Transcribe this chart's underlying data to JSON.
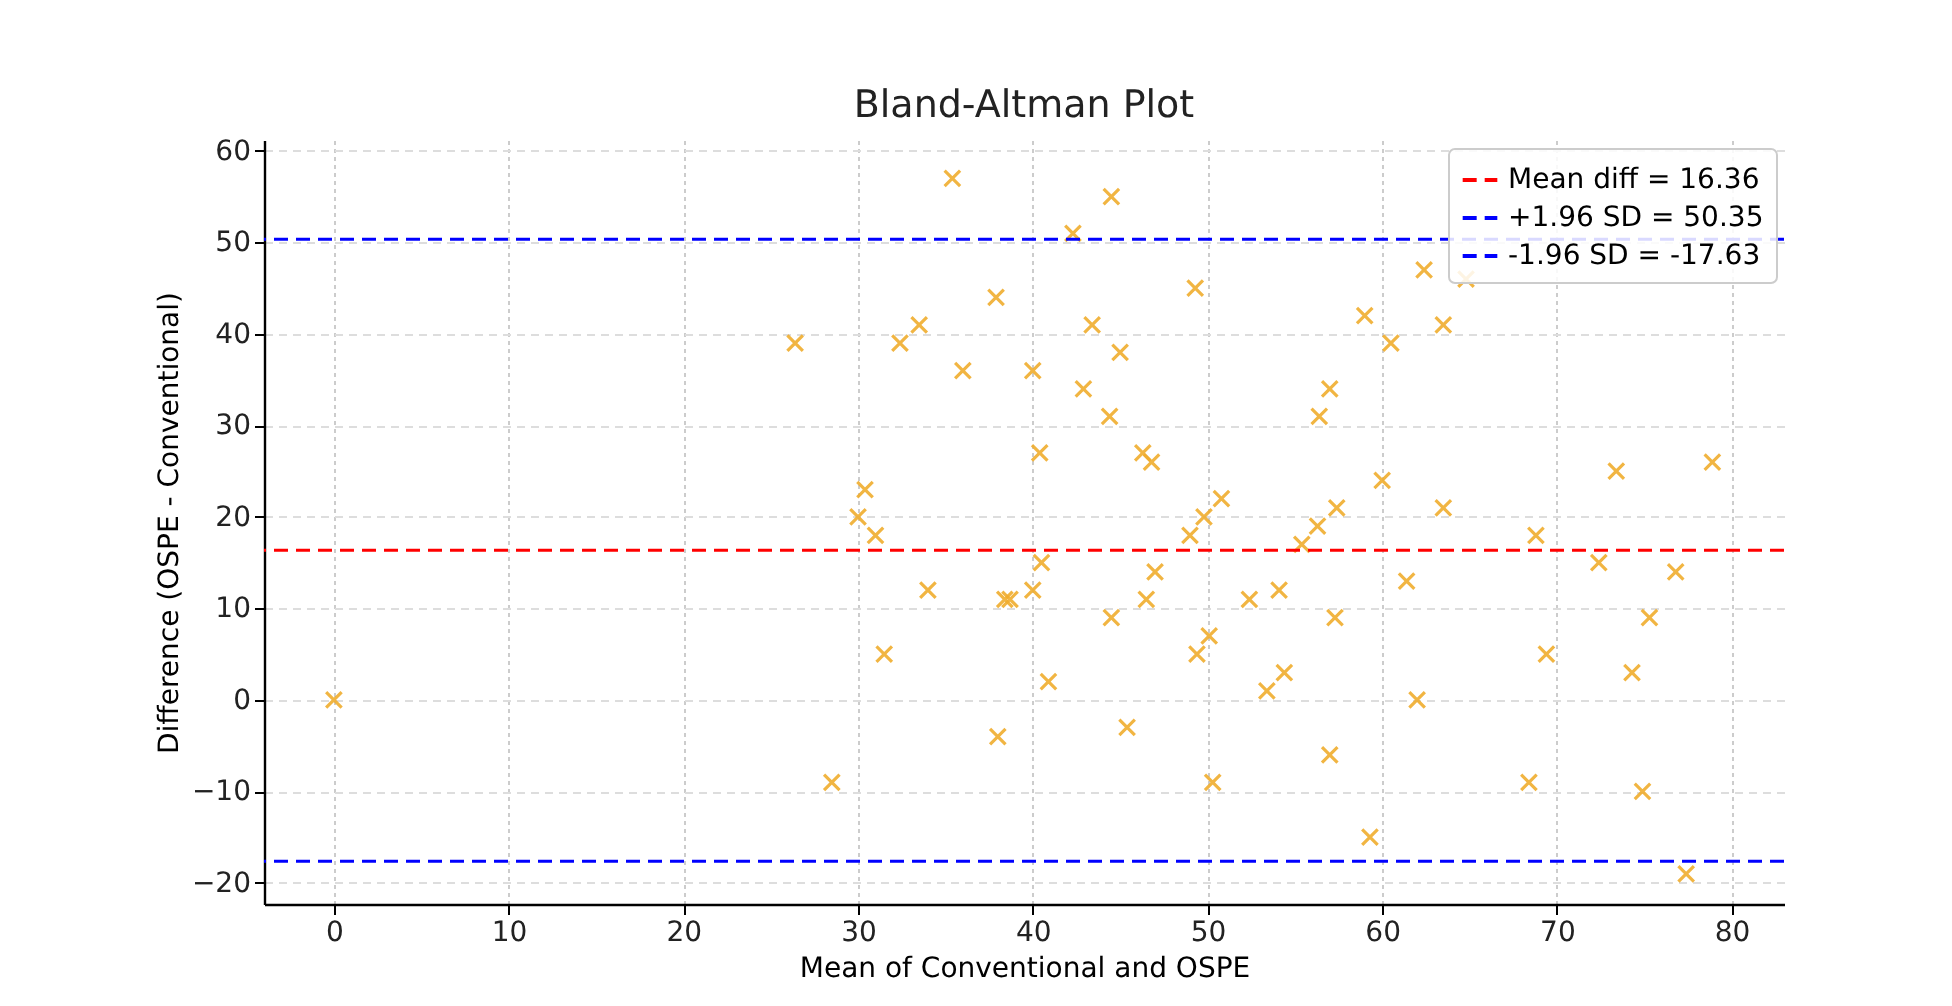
{
  "chart_data": {
    "type": "scatter",
    "title": "Bland-Altman Plot",
    "xlabel": "Mean of Conventional and OSPE",
    "ylabel": "Difference (OSPE - Conventional)",
    "x": [
      0,
      26.4,
      28.5,
      30,
      30.4,
      31,
      31.5,
      32.4,
      33.5,
      34,
      35.4,
      36,
      37.9,
      38,
      38.4,
      38.7,
      40,
      40,
      40.4,
      40.5,
      40.9,
      42.3,
      42.9,
      43.4,
      44.4,
      44.5,
      44.5,
      45,
      45.4,
      46.3,
      46.5,
      46.8,
      47,
      49,
      49.3,
      49.4,
      49.8,
      50.1,
      50.3,
      50.8,
      52.4,
      53.4,
      54.1,
      54.4,
      55.4,
      56.3,
      56.4,
      57,
      57,
      57.3,
      57.4,
      59,
      59.3,
      60,
      60.5,
      61.4,
      62,
      62.4,
      63.5,
      63.5,
      64.8,
      68.4,
      68.8,
      69.4,
      72.4,
      73.4,
      74.3,
      74.9,
      75.3,
      76.8,
      77.4,
      78.9
    ],
    "series": [
      {
        "color": "#f0ad2e",
        "values": [
          0,
          39,
          -9,
          20,
          23,
          18,
          5,
          39,
          41,
          12,
          57,
          36,
          44,
          -4,
          11,
          11,
          36,
          12,
          27,
          15,
          2,
          51,
          34,
          41,
          31,
          55,
          9,
          38,
          -3,
          27,
          11,
          26,
          14,
          18,
          45,
          5,
          20,
          7,
          -9,
          22,
          11,
          1,
          12,
          3,
          17,
          19,
          31,
          34,
          -6,
          9,
          21,
          42,
          -15,
          24,
          39,
          13,
          0,
          47,
          41,
          21,
          46,
          -9,
          18,
          5,
          15,
          25,
          3,
          -10,
          9,
          14,
          -19,
          26
        ]
      }
    ],
    "marker": "cross",
    "ref_lines": [
      {
        "axis": "y",
        "value": 16.36,
        "label": "Mean diff = 16.36",
        "color": "#ff0000",
        "line_style": "dashed"
      },
      {
        "axis": "y",
        "value": 50.35,
        "label": "+1.96 SD = 50.35",
        "color": "#0000ff",
        "line_style": "dashed"
      },
      {
        "axis": "y",
        "value": -17.63,
        "label": "-1.96 SD = -17.63",
        "color": "#0000ff",
        "line_style": "dashed"
      }
    ],
    "xlim": [
      -4,
      83
    ],
    "ylim": [
      -22.3,
      61.2
    ],
    "xticks": [
      0,
      10,
      20,
      30,
      40,
      50,
      60,
      70,
      80
    ],
    "yticks": [
      -20,
      -10,
      0,
      10,
      20,
      30,
      40,
      50,
      60
    ],
    "grid": true,
    "legend": "top right"
  }
}
